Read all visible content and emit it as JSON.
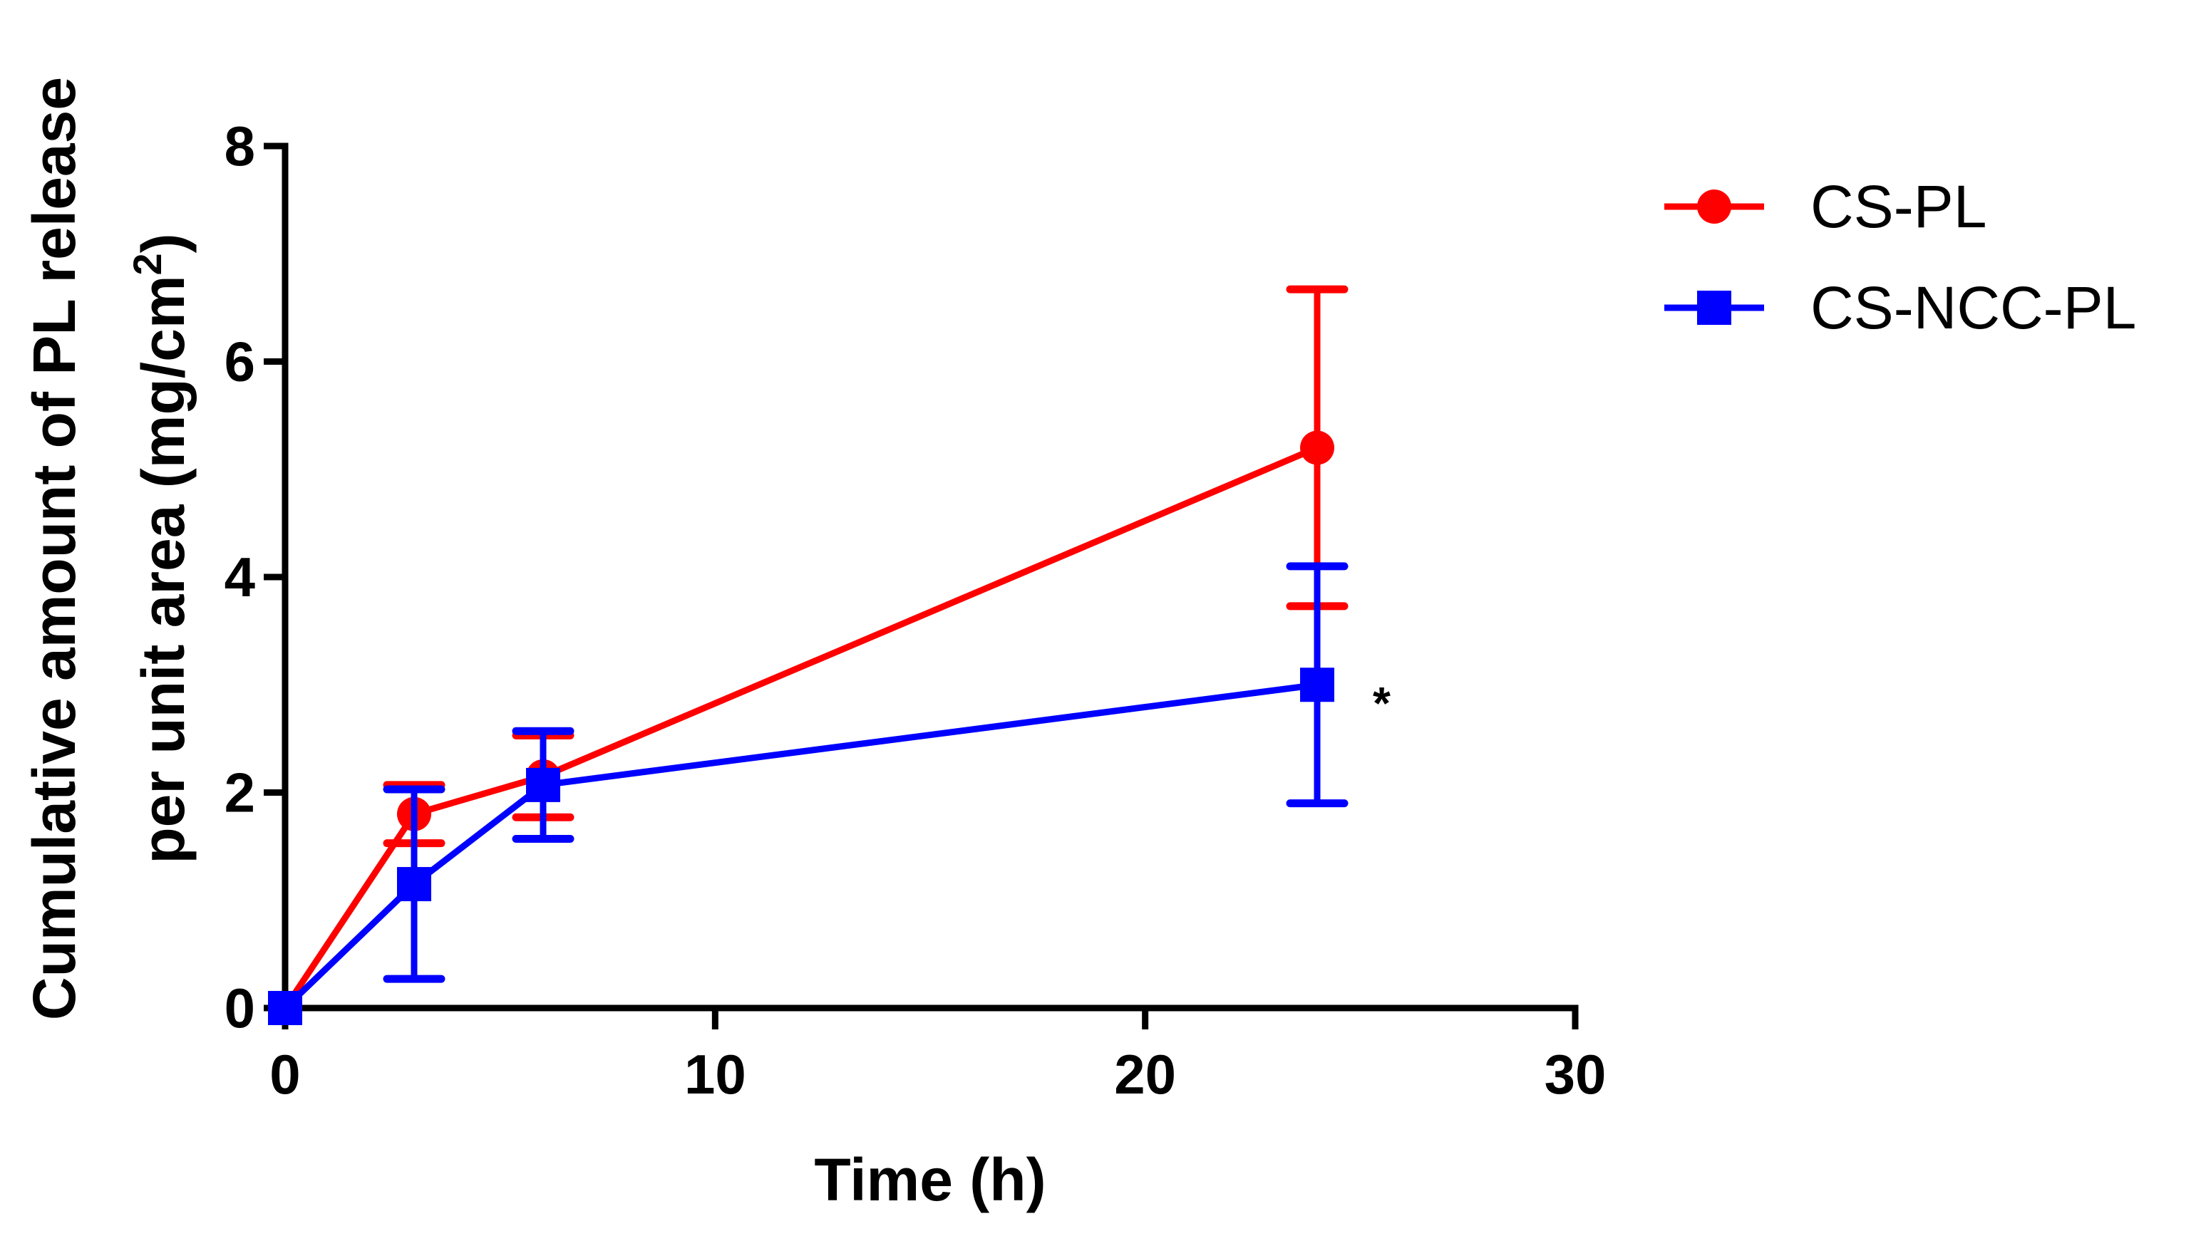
{
  "chart_data": {
    "type": "line",
    "title": "",
    "xlabel": "Time (h)",
    "ylabel_line1": "Cumulative amount of PL release",
    "ylabel_line2_main": "per unit area (mg/cm",
    "ylabel_line2_sup": "2",
    "ylabel_line2_end": ")",
    "xlim": [
      0,
      30
    ],
    "ylim": [
      0,
      8
    ],
    "xticks": [
      "0",
      "10",
      "20",
      "30"
    ],
    "xtick_values": [
      0,
      10,
      20,
      30
    ],
    "yticks": [
      "0",
      "2",
      "4",
      "6",
      "8"
    ],
    "ytick_values": [
      0,
      2,
      4,
      6,
      8
    ],
    "legend_position": "top-right",
    "series": [
      {
        "name": "CS-PL",
        "color": "#ff0000",
        "marker": "circle",
        "x": [
          0,
          3,
          6,
          24
        ],
        "y": [
          0,
          1.8,
          2.15,
          5.2
        ],
        "err": [
          0,
          0.27,
          0.38,
          1.47
        ]
      },
      {
        "name": "CS-NCC-PL",
        "color": "#0000ff",
        "marker": "square",
        "x": [
          0,
          3,
          6,
          24
        ],
        "y": [
          0,
          1.15,
          2.07,
          3.0
        ],
        "err": [
          0,
          0.88,
          0.5,
          1.1
        ]
      }
    ],
    "annotations": [
      {
        "text": "*",
        "x": 25.5,
        "y": 2.95
      }
    ]
  }
}
